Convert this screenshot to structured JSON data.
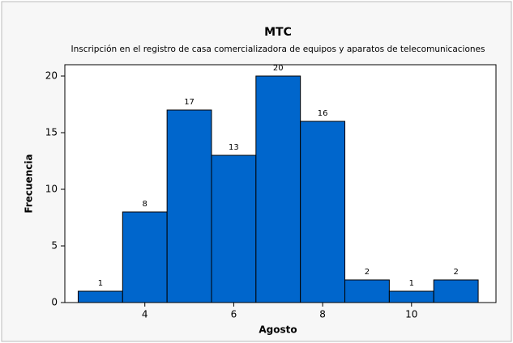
{
  "chart_data": {
    "type": "histogram",
    "title": "MTC",
    "subtitle": "Inscripción en el registro de casa comercializadora de equipos y aparatos de telecomunicaciones",
    "x_label": "Agosto",
    "y_label": "Frecuencia",
    "bins": [
      2.5,
      3.5,
      4.5,
      5.5,
      6.5,
      7.5,
      8.5,
      9.5,
      10.5,
      11.5
    ],
    "values": [
      1,
      8,
      17,
      13,
      20,
      16,
      2,
      1,
      2
    ],
    "color": "#0066cc",
    "xlim": [
      2.2,
      11.9
    ],
    "ylim": [
      0,
      21
    ],
    "xticks": [
      4,
      6,
      8,
      10
    ],
    "yticks": [
      0,
      5,
      10,
      15,
      20
    ]
  }
}
